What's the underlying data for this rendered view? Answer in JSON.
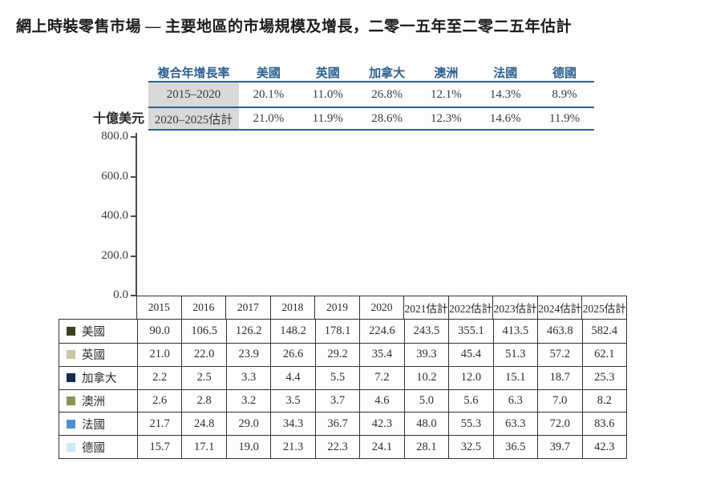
{
  "title": "網上時裝零售市場 — 主要地區的市場規模及增長，二零一五年至二零二五年估計",
  "colors": {
    "table_blue": "#2d6191",
    "row_label_gray": "#d9d9d9",
    "axis": "#4a4a4a",
    "border_dark": "#333333"
  },
  "cagr_table": {
    "header": [
      "複合年增長率",
      "美國",
      "英國",
      "加拿大",
      "澳洲",
      "法國",
      "德國"
    ],
    "rows": [
      {
        "label": "2015–2020",
        "values": [
          "20.1%",
          "11.0%",
          "26.8%",
          "12.1%",
          "14.3%",
          "8.9%"
        ]
      },
      {
        "label": "2020–2025估計",
        "values": [
          "21.0%",
          "11.9%",
          "28.6%",
          "12.3%",
          "14.6%",
          "11.9%"
        ]
      }
    ]
  },
  "chart_data": {
    "type": "bar",
    "stacked": true,
    "title": "網上時裝零售市場 — 主要地區的市場規模及增長，二零一五年至二零二五年估計",
    "unit_label": "十億美元",
    "xlabel": "",
    "ylabel": "十億美元",
    "ylim": [
      0,
      800
    ],
    "y_ticks": [
      "800.0",
      "600.0",
      "400.0",
      "200.0",
      "0.0"
    ],
    "grid": false,
    "legend_position": "table-left-below",
    "categories": [
      "2015",
      "2016",
      "2017",
      "2018",
      "2019",
      "2020",
      "2021估計",
      "2022估計",
      "2023估計",
      "2024估計",
      "2025估計"
    ],
    "series": [
      {
        "name": "美國",
        "color": "#3b411f",
        "values": [
          90.0,
          106.5,
          126.2,
          148.2,
          178.1,
          224.6,
          243.5,
          355.1,
          413.5,
          463.8,
          582.4
        ]
      },
      {
        "name": "英國",
        "color": "#c9c6a2",
        "values": [
          21.0,
          22.0,
          23.9,
          26.6,
          29.2,
          35.4,
          39.3,
          45.4,
          51.3,
          57.2,
          62.1
        ]
      },
      {
        "name": "加拿大",
        "color": "#132a4f",
        "values": [
          2.2,
          2.5,
          3.3,
          4.4,
          5.5,
          7.2,
          10.2,
          12.0,
          15.1,
          18.7,
          25.3
        ]
      },
      {
        "name": "澳洲",
        "color": "#8b9355",
        "values": [
          2.6,
          2.8,
          3.2,
          3.5,
          3.7,
          4.6,
          5.0,
          5.6,
          6.3,
          7.0,
          8.2
        ]
      },
      {
        "name": "法國",
        "color": "#4e8fd0",
        "values": [
          21.7,
          24.8,
          29.0,
          34.3,
          36.7,
          42.3,
          48.0,
          55.3,
          63.3,
          72.0,
          83.6
        ]
      },
      {
        "name": "德國",
        "color": "#cfe7f6",
        "values": [
          15.7,
          17.1,
          19.0,
          21.3,
          22.3,
          24.1,
          28.1,
          32.5,
          36.5,
          39.7,
          42.3
        ]
      }
    ],
    "stack_order_bottom_to_top": [
      "德國",
      "法國",
      "澳洲",
      "加拿大",
      "英國",
      "美國"
    ]
  }
}
